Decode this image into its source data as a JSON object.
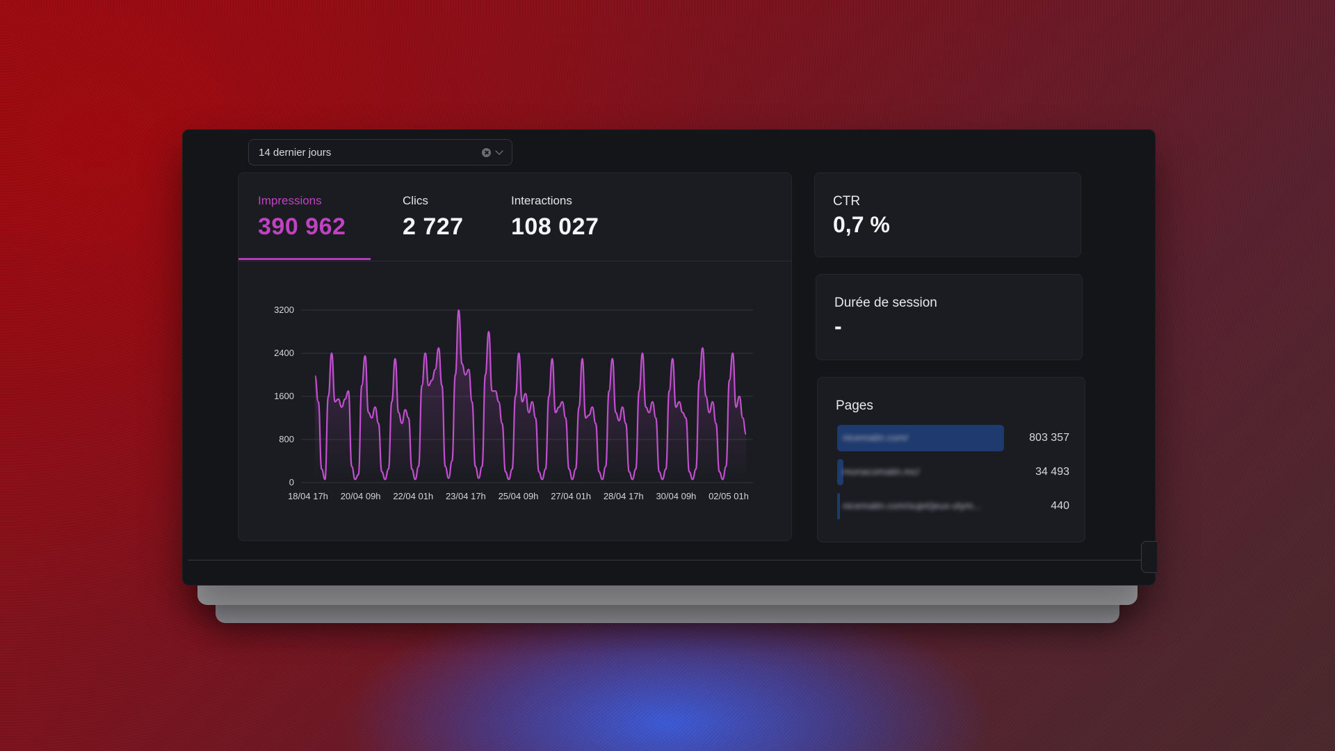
{
  "filter": {
    "value": "14 dernier jours"
  },
  "metrics": {
    "tabs": [
      {
        "label": "Impressions",
        "value": "390 962"
      },
      {
        "label": "Clics",
        "value": "2 727"
      },
      {
        "label": "Interactions",
        "value": "108 027"
      }
    ],
    "active_tab": "Impressions"
  },
  "ctr": {
    "title": "CTR",
    "value": "0,7 %"
  },
  "session": {
    "title": "Durée de session",
    "value": "-"
  },
  "pages": {
    "title": "Pages",
    "items": [
      {
        "label": "nicematin.com/",
        "value": "803 357",
        "share": 0.8
      },
      {
        "label": "monacomatin.mc/",
        "value": "34 493",
        "share": 0.03
      },
      {
        "label": "nicematin.com/sujet/jeux-olym...",
        "value": "440",
        "share": 0.005
      }
    ]
  },
  "colors": {
    "accent": "#c042c2",
    "line": "#c24fd0",
    "page_bar": "#1e3a6e"
  },
  "chart_data": {
    "type": "line",
    "ylim": [
      0,
      3200
    ],
    "yticks": [
      "3200",
      "2400",
      "1600",
      "800",
      "0"
    ],
    "yticks_values": [
      3200,
      2400,
      1600,
      800,
      0
    ],
    "xticks": [
      "18/04 17h",
      "20/04 09h",
      "22/04 01h",
      "23/04 17h",
      "25/04 09h",
      "27/04 01h",
      "28/04 17h",
      "30/04 09h",
      "02/05 01h"
    ],
    "grid": true,
    "series": [
      {
        "values": [
          1980,
          1500,
          250,
          60,
          1600,
          2400,
          1500,
          1550,
          1400,
          1550,
          1700,
          300,
          60,
          150,
          1800,
          2350,
          1300,
          1200,
          1400,
          1100,
          200,
          60,
          250,
          1500,
          2300,
          1300,
          1100,
          1350,
          1200,
          250,
          60,
          300,
          1800,
          2400,
          1800,
          1900,
          2100,
          2500,
          1800,
          300,
          80,
          400,
          2000,
          3200,
          2200,
          2000,
          2100,
          1500,
          300,
          80,
          300,
          2000,
          2800,
          1700,
          1700,
          1500,
          1100,
          200,
          60,
          250,
          1600,
          2400,
          1500,
          1650,
          1300,
          1500,
          1200,
          200,
          60,
          250,
          1600,
          2300,
          1300,
          1400,
          1500,
          1200,
          250,
          60,
          250,
          1400,
          2300,
          1200,
          1250,
          1400,
          1100,
          200,
          60,
          300,
          1700,
          2300,
          1300,
          1150,
          1400,
          1100,
          200,
          60,
          250,
          1700,
          2400,
          1400,
          1300,
          1500,
          1200,
          200,
          60,
          250,
          1700,
          2300,
          1400,
          1500,
          1300,
          1200,
          200,
          60,
          250,
          1900,
          2500,
          1600,
          1300,
          1500,
          1100,
          200,
          60,
          300,
          1900,
          2400,
          1400,
          1600,
          1200,
          900
        ]
      }
    ]
  }
}
